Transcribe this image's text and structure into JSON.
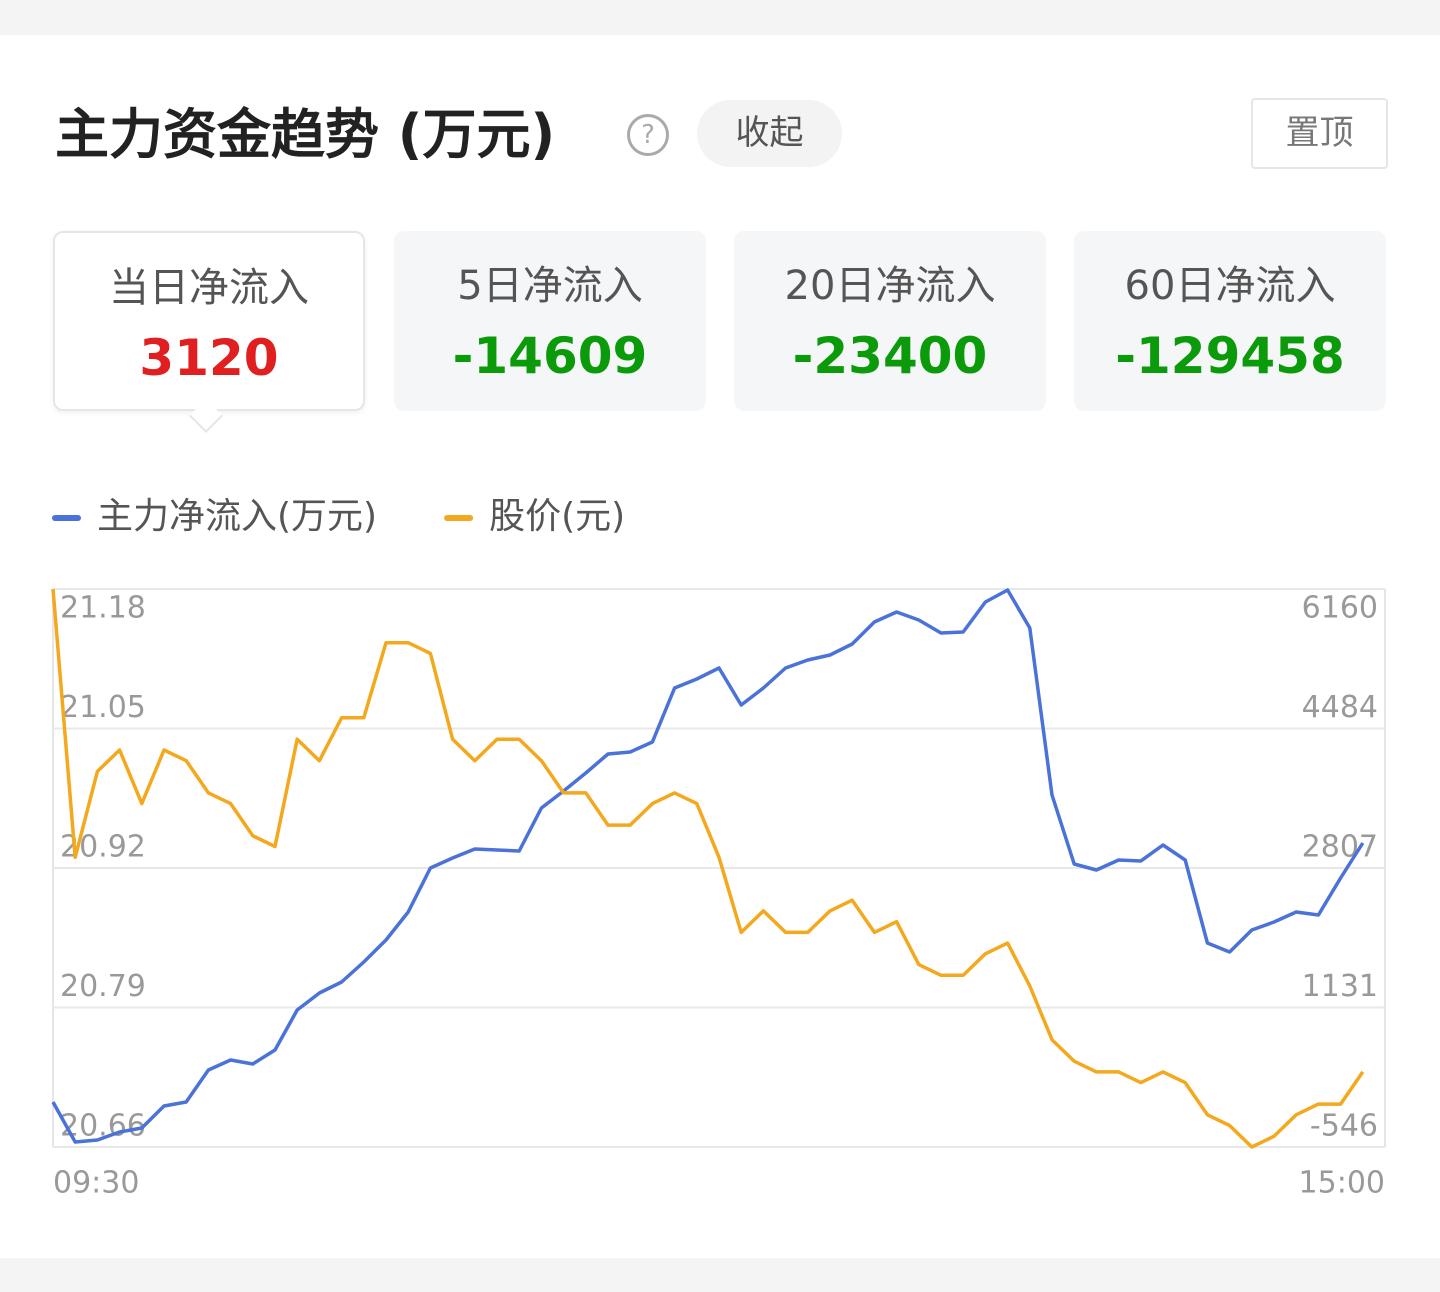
{
  "header": {
    "title": "主力资金趋势 (万元)",
    "collapse": "收起",
    "pin": "置顶"
  },
  "tabs": [
    {
      "label": "当日净流入",
      "value": 3120
    },
    {
      "label": "5日净流入",
      "value": -14609
    },
    {
      "label": "20日净流入",
      "value": -23400
    },
    {
      "label": "60日净流入",
      "value": -129458
    }
  ],
  "chart_data": {
    "type": "line",
    "categories": [
      "09:30",
      null,
      null,
      null,
      null,
      null,
      null,
      null,
      null,
      null,
      null,
      null,
      null,
      null,
      null,
      null,
      null,
      null,
      null,
      null,
      null,
      null,
      null,
      null,
      null,
      null,
      null,
      null,
      null,
      null,
      null,
      null,
      null,
      null,
      null,
      null,
      null,
      null,
      null,
      null,
      null,
      null,
      null,
      null,
      null,
      null,
      null,
      null,
      null,
      null,
      null,
      null,
      null,
      null,
      null,
      null,
      null,
      null,
      null,
      null,
      "15:00"
    ],
    "series": [
      {
        "name": "主力净流入(万元)",
        "color": "#4a72d8",
        "axis": "y2",
        "values": [
          -5,
          -486,
          -462,
          -366,
          -318,
          -53,
          -5,
          379,
          500,
          451,
          620,
          1100,
          1305,
          1437,
          1677,
          1942,
          2278,
          2807,
          2927,
          3035,
          3023,
          3011,
          3528,
          3732,
          3949,
          4177,
          4201,
          4321,
          4970,
          5078,
          5211,
          4766,
          4970,
          5211,
          5307,
          5367,
          5499,
          5763,
          5884,
          5787,
          5631,
          5643,
          6004,
          6148,
          5691,
          3684,
          2855,
          2783,
          2903,
          2891,
          3083,
          2903,
          1906,
          1797,
          2062,
          2158,
          2278,
          2242,
          2687,
          3107,
          null
        ]
      },
      {
        "name": "股价(元)",
        "color": "#f4a81d",
        "values": [
          21.18,
          20.93,
          21.01,
          21.03,
          20.98,
          21.03,
          21.02,
          20.99,
          20.98,
          20.95,
          20.94,
          21.04,
          21.02,
          21.06,
          21.06,
          21.13,
          21.13,
          21.12,
          21.04,
          21.02,
          21.04,
          21.04,
          21.02,
          20.99,
          20.99,
          20.96,
          20.96,
          20.98,
          20.99,
          20.98,
          20.93,
          20.86,
          20.88,
          20.86,
          20.86,
          20.88,
          20.89,
          20.86,
          20.87,
          20.83,
          20.82,
          20.82,
          20.84,
          20.85,
          20.81,
          20.76,
          20.74,
          20.73,
          20.73,
          20.72,
          20.73,
          20.72,
          20.69,
          20.68,
          20.66,
          20.67,
          20.69,
          20.7,
          20.7,
          20.73,
          null
        ]
      }
    ],
    "ylim": [
      20.66,
      21.18
    ],
    "yticks": [
      21.18,
      21.05,
      20.92,
      20.79,
      20.66
    ],
    "y2lim": [
      -546,
      6160
    ],
    "y2ticks": [
      6160,
      4484,
      2807,
      1131,
      -546
    ],
    "grid": true
  }
}
